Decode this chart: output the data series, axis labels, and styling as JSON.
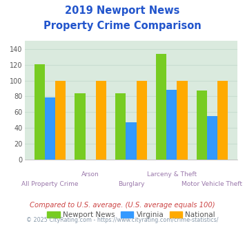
{
  "title_line1": "2019 Newport News",
  "title_line2": "Property Crime Comparison",
  "title_color": "#2255cc",
  "categories": [
    "All Property Crime",
    "Arson",
    "Burglary",
    "Larceny & Theft",
    "Motor Vehicle Theft"
  ],
  "top_labels": [
    "",
    "Arson",
    "",
    "Larceny & Theft",
    ""
  ],
  "bottom_labels": [
    "All Property Crime",
    "",
    "Burglary",
    "",
    "Motor Vehicle Theft"
  ],
  "series": {
    "Newport News": [
      121,
      84,
      84,
      134,
      87
    ],
    "Virginia": [
      79,
      0,
      47,
      88,
      55
    ],
    "National": [
      100,
      100,
      100,
      100,
      100
    ]
  },
  "colors": {
    "Newport News": "#77cc22",
    "Virginia": "#3399ff",
    "National": "#ffaa00"
  },
  "ylim": [
    0,
    150
  ],
  "yticks": [
    0,
    20,
    40,
    60,
    80,
    100,
    120,
    140
  ],
  "xlabel_color": "#9977aa",
  "grid_color": "#c8ddd0",
  "bg_color": "#daeade",
  "legend_labels": [
    "Newport News",
    "Virginia",
    "National"
  ],
  "footnote1": "Compared to U.S. average. (U.S. average equals 100)",
  "footnote2": "© 2025 CityRating.com - https://www.cityrating.com/crime-statistics/",
  "footnote1_color": "#cc4444",
  "footnote2_color": "#8899aa"
}
